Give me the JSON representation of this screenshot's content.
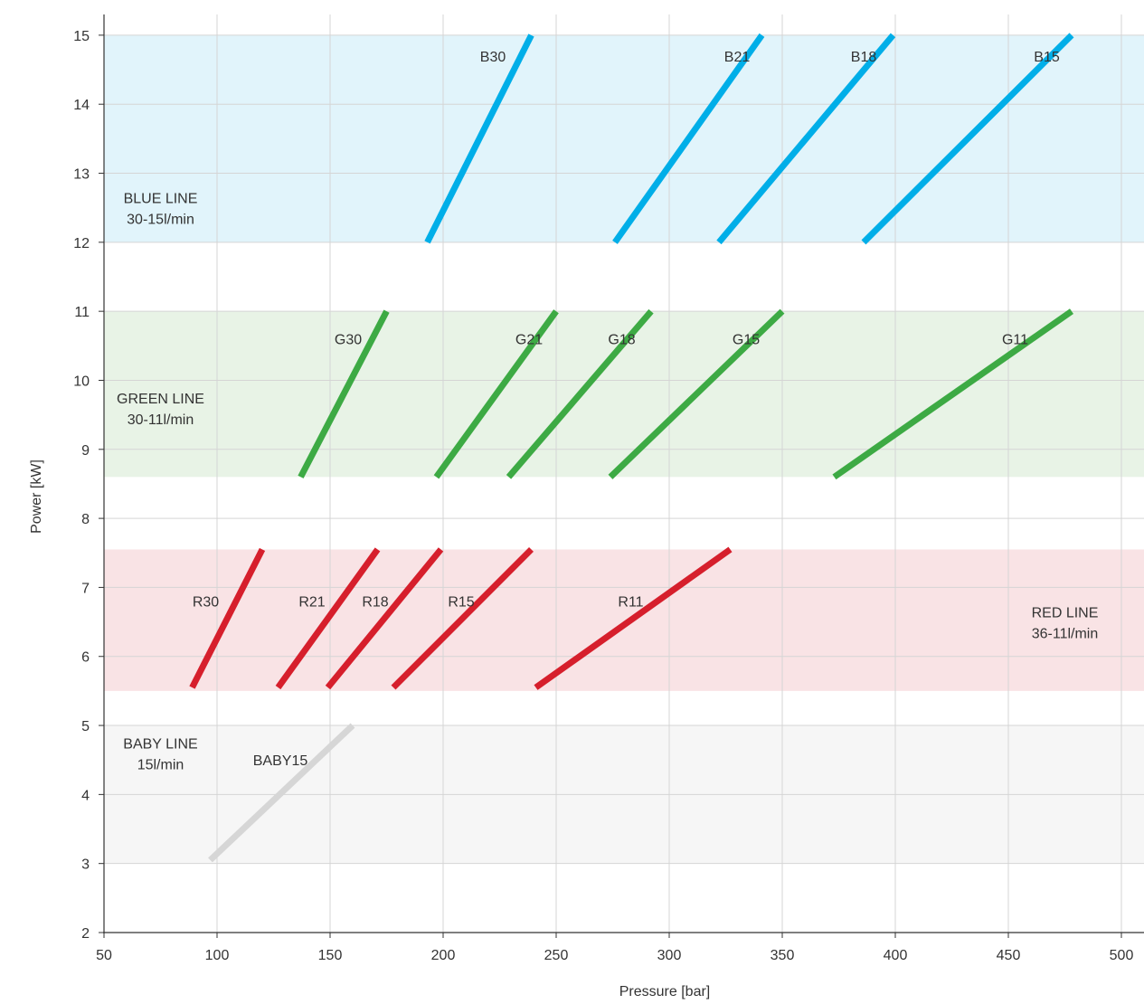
{
  "chart_data": {
    "type": "line",
    "xlabel": "Pressure [bar]",
    "ylabel": "Power [kW]",
    "xlim": [
      50,
      510
    ],
    "ylim": [
      2,
      15.3
    ],
    "xticks": [
      50,
      100,
      150,
      200,
      250,
      300,
      350,
      400,
      450,
      500
    ],
    "yticks": [
      2,
      3,
      4,
      5,
      6,
      7,
      8,
      9,
      10,
      11,
      12,
      13,
      14,
      15
    ],
    "grid": true,
    "bands": [
      {
        "name": "BLUE LINE",
        "range": "30-15l/min",
        "y": [
          12,
          15
        ],
        "color": "#e1f4fb",
        "label_x": 75,
        "label_y": 12.5
      },
      {
        "name": "GREEN LINE",
        "range": "30-11l/min",
        "y": [
          8.6,
          11
        ],
        "color": "#e8f3e6",
        "label_x": 75,
        "label_y": 9.6
      },
      {
        "name": "RED LINE",
        "range": "36-11l/min",
        "y": [
          5.5,
          7.55
        ],
        "color": "#f9e3e5",
        "label_x": 475,
        "label_y": 6.5
      },
      {
        "name": "BABY LINE",
        "range": "15l/min",
        "y": [
          3,
          5
        ],
        "color": "#f6f6f6",
        "label_x": 75,
        "label_y": 4.6
      }
    ],
    "series": [
      {
        "name": "B30",
        "color": "#00aee8",
        "x": [
          193,
          239
        ],
        "y": [
          12,
          15
        ],
        "label_x": 222,
        "label_y": 14.7
      },
      {
        "name": "B21",
        "color": "#00aee8",
        "x": [
          276,
          341
        ],
        "y": [
          12,
          15
        ],
        "label_x": 330,
        "label_y": 14.7
      },
      {
        "name": "B18",
        "color": "#00aee8",
        "x": [
          322,
          399
        ],
        "y": [
          12,
          15
        ],
        "label_x": 386,
        "label_y": 14.7
      },
      {
        "name": "B15",
        "color": "#00aee8",
        "x": [
          386,
          478
        ],
        "y": [
          12,
          15
        ],
        "label_x": 467,
        "label_y": 14.7
      },
      {
        "name": "G30",
        "color": "#3daa44",
        "x": [
          137,
          175
        ],
        "y": [
          8.6,
          11
        ],
        "label_x": 158,
        "label_y": 10.6
      },
      {
        "name": "G21",
        "color": "#3daa44",
        "x": [
          197,
          250
        ],
        "y": [
          8.6,
          11
        ],
        "label_x": 238,
        "label_y": 10.6
      },
      {
        "name": "G18",
        "color": "#3daa44",
        "x": [
          229,
          292
        ],
        "y": [
          8.6,
          11
        ],
        "label_x": 279,
        "label_y": 10.6
      },
      {
        "name": "G15",
        "color": "#3daa44",
        "x": [
          274,
          350
        ],
        "y": [
          8.6,
          11
        ],
        "label_x": 334,
        "label_y": 10.6
      },
      {
        "name": "G11",
        "color": "#3daa44",
        "x": [
          373,
          478
        ],
        "y": [
          8.6,
          11
        ],
        "label_x": 453,
        "label_y": 10.6
      },
      {
        "name": "R30",
        "color": "#d61f2c",
        "x": [
          89,
          120
        ],
        "y": [
          5.55,
          7.55
        ],
        "label_x": 95,
        "label_y": 6.8
      },
      {
        "name": "R21",
        "color": "#d61f2c",
        "x": [
          127,
          171
        ],
        "y": [
          5.55,
          7.55
        ],
        "label_x": 142,
        "label_y": 6.8
      },
      {
        "name": "R18",
        "color": "#d61f2c",
        "x": [
          149,
          199
        ],
        "y": [
          5.55,
          7.55
        ],
        "label_x": 170,
        "label_y": 6.8
      },
      {
        "name": "R15",
        "color": "#d61f2c",
        "x": [
          178,
          239
        ],
        "y": [
          5.55,
          7.55
        ],
        "label_x": 208,
        "label_y": 6.8
      },
      {
        "name": "R11",
        "color": "#d61f2c",
        "x": [
          241,
          327
        ],
        "y": [
          5.55,
          7.55
        ],
        "label_x": 283,
        "label_y": 6.8
      },
      {
        "name": "BABY15",
        "color": "#d6d6d6",
        "x": [
          97,
          160
        ],
        "y": [
          3.05,
          5.0
        ],
        "label_x": 128,
        "label_y": 4.5
      }
    ]
  }
}
